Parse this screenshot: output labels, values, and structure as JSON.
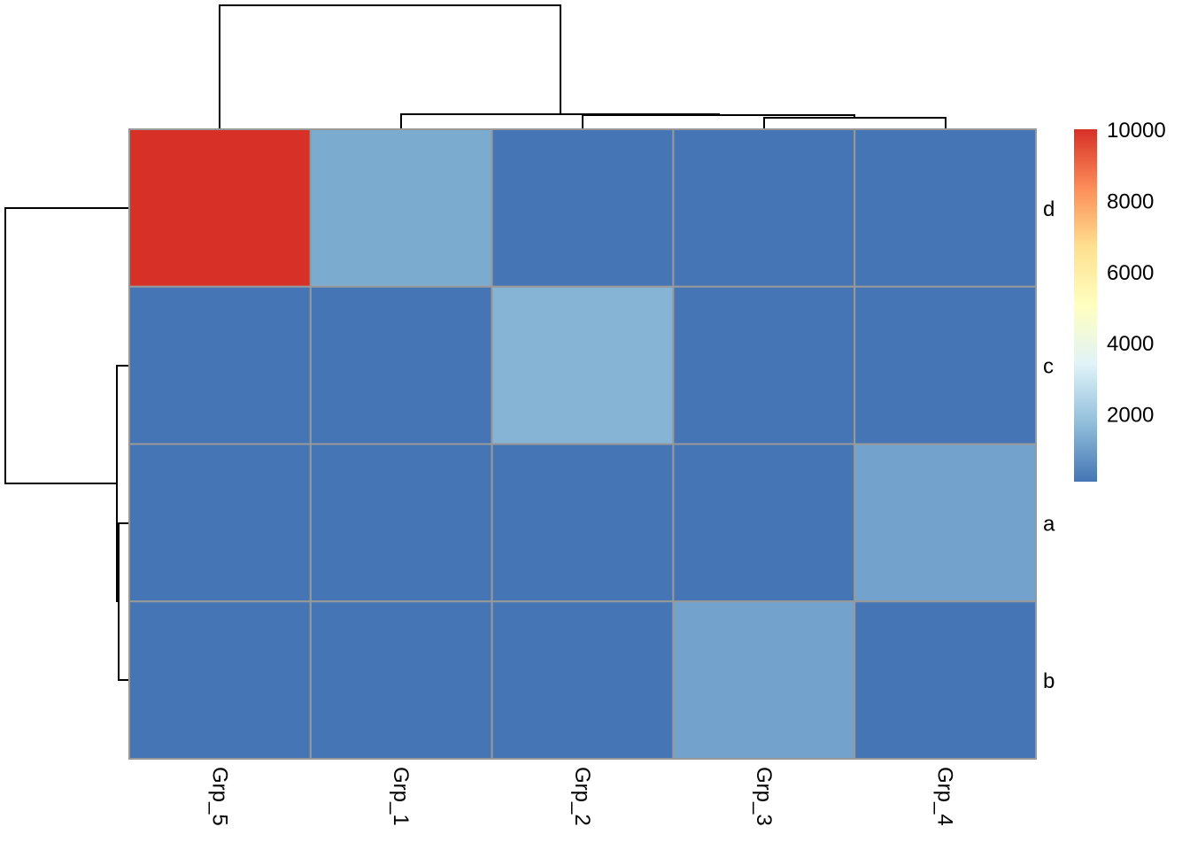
{
  "chart_data": {
    "type": "heatmap",
    "title": "",
    "columns": [
      "Grp_5",
      "Grp_1",
      "Grp_2",
      "Grp_3",
      "Grp_4"
    ],
    "rows": [
      "d",
      "c",
      "a",
      "b"
    ],
    "values": [
      [
        10000,
        1300,
        100,
        100,
        100
      ],
      [
        100,
        100,
        1500,
        100,
        100
      ],
      [
        100,
        100,
        100,
        100,
        1100
      ],
      [
        100,
        100,
        100,
        1100,
        100
      ]
    ],
    "colorbar": {
      "min": 100,
      "max": 10000,
      "ticks": [
        2000,
        4000,
        6000,
        8000,
        10000
      ],
      "tick_labels": [
        "2000",
        "4000",
        "6000",
        "8000",
        "10000"
      ],
      "colors": [
        "#4575B4",
        "#91BFDB",
        "#E0F3F8",
        "#FFFFBF",
        "#FEE090",
        "#FC8D59",
        "#D73027"
      ]
    },
    "cell_border_color": "#999999",
    "column_dendrogram": true,
    "row_dendrogram": true,
    "legend": "right"
  }
}
